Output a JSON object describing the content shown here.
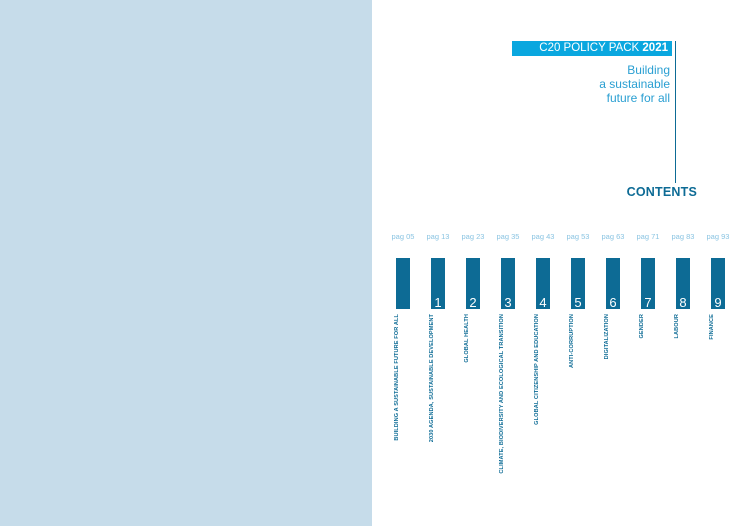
{
  "banner": {
    "text": "C20 POLICY PACK",
    "year": "2021"
  },
  "subtitle": "Building\na sustainable\nfuture for all",
  "contents_title": "CONTENTS",
  "chapters": [
    {
      "page": "pag 05",
      "number": "",
      "label": "BUILDING A SUSTAINABLE FUTURE FOR ALL"
    },
    {
      "page": "pag 13",
      "number": "1",
      "label": "2030 AGENDA, SUSTAINABLE DEVELOPMENT"
    },
    {
      "page": "pag 23",
      "number": "2",
      "label": "GLOBAL HEALTH"
    },
    {
      "page": "pag 35",
      "number": "3",
      "label": "CLIMATE, BIODIVERSITY AND ECOLOGICAL TRANSITION"
    },
    {
      "page": "pag 43",
      "number": "4",
      "label": "GLOBAL CITIZENSHIP AND EDUCATION"
    },
    {
      "page": "pag 53",
      "number": "5",
      "label": "ANTI-CORRUPTION"
    },
    {
      "page": "pag 63",
      "number": "6",
      "label": "DIGITALIZATION"
    },
    {
      "page": "pag 71",
      "number": "7",
      "label": "GENDER"
    },
    {
      "page": "pag 83",
      "number": "8",
      "label": "LABOUR"
    },
    {
      "page": "pag 93",
      "number": "9",
      "label": "FINANCE"
    }
  ]
}
